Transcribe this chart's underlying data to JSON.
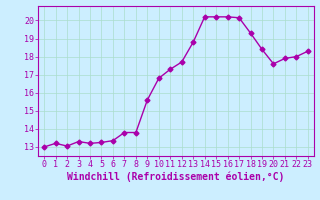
{
  "x": [
    0,
    1,
    2,
    3,
    4,
    5,
    6,
    7,
    8,
    9,
    10,
    11,
    12,
    13,
    14,
    15,
    16,
    17,
    18,
    19,
    20,
    21,
    22,
    23
  ],
  "y": [
    13.0,
    13.2,
    13.05,
    13.3,
    13.2,
    13.25,
    13.35,
    13.8,
    13.8,
    15.6,
    16.8,
    17.3,
    17.7,
    18.8,
    20.2,
    20.2,
    20.2,
    20.15,
    19.3,
    18.4,
    17.6,
    17.9,
    18.0,
    18.3
  ],
  "line_color": "#aa00aa",
  "marker": "D",
  "markersize": 2.5,
  "linewidth": 1.0,
  "xlabel": "Windchill (Refroidissement éolien,°C)",
  "xlim": [
    -0.5,
    23.5
  ],
  "ylim": [
    12.5,
    20.8
  ],
  "yticks": [
    13,
    14,
    15,
    16,
    17,
    18,
    19,
    20
  ],
  "xticks": [
    0,
    1,
    2,
    3,
    4,
    5,
    6,
    7,
    8,
    9,
    10,
    11,
    12,
    13,
    14,
    15,
    16,
    17,
    18,
    19,
    20,
    21,
    22,
    23
  ],
  "bg_color": "#cceeff",
  "grid_color": "#aaddcc",
  "tick_color": "#aa00aa",
  "label_color": "#aa00aa",
  "xlabel_fontsize": 7.0,
  "tick_fontsize": 6.0
}
